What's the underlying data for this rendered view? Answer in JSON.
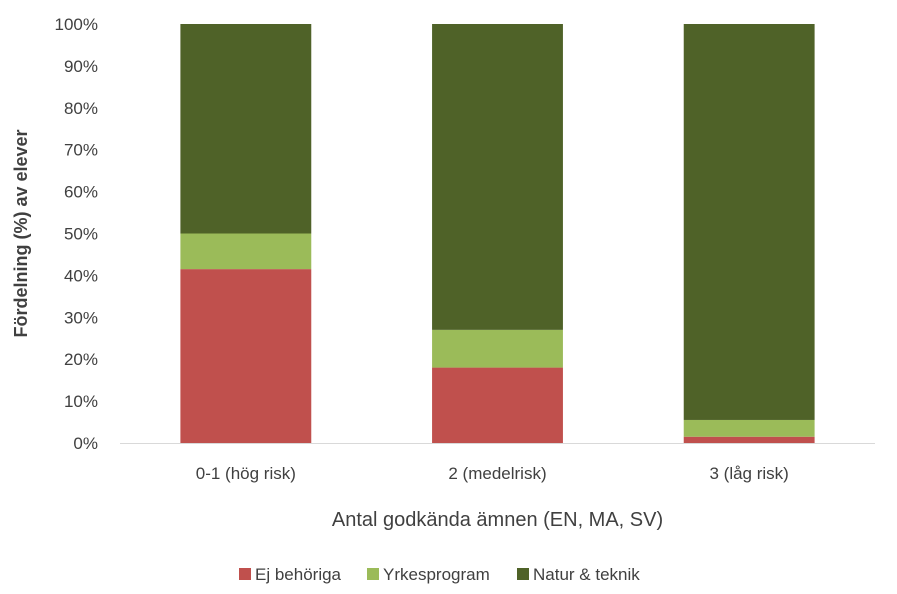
{
  "chart_data": {
    "type": "bar",
    "stacked": true,
    "categories": [
      "0-1 (hög risk)",
      "2 (medelrisk)",
      "3 (låg risk)"
    ],
    "series": [
      {
        "name": "Ej behöriga",
        "color": "#c0504d",
        "values": [
          41.5,
          18,
          1.5
        ]
      },
      {
        "name": "Yrkesprogram",
        "color": "#9bbb59",
        "values": [
          8.5,
          9,
          4
        ]
      },
      {
        "name": "Natur & teknik",
        "color": "#4f6228",
        "values": [
          50,
          73,
          94.5
        ]
      }
    ],
    "xlabel": "Antal godkända ämnen (EN, MA, SV)",
    "ylabel": "Fördelning (%) av elever",
    "ylim": [
      0,
      100
    ],
    "yticks": [
      "0%",
      "10%",
      "20%",
      "30%",
      "40%",
      "50%",
      "60%",
      "70%",
      "80%",
      "90%",
      "100%"
    ],
    "legend_position": "bottom",
    "grid": false
  }
}
